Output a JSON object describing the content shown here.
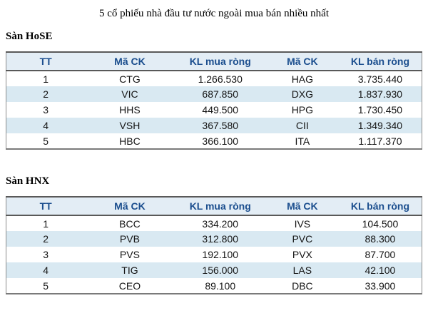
{
  "title": "5 cổ phiếu nhà đầu tư nước ngoài mua bán nhiều nhất",
  "colors": {
    "header_text": "#1b4e8e",
    "header_bg": "#e3edf5",
    "alt_row_bg": "#d9e9f2",
    "border": "#8c8c8c"
  },
  "tables": [
    {
      "section": "Sàn HoSE",
      "headers": [
        "TT",
        "Mã CK",
        "KL mua ròng",
        "Mã CK",
        "KL bán ròng"
      ],
      "rows": [
        [
          "1",
          "CTG",
          "1.266.530",
          "HAG",
          "3.735.440"
        ],
        [
          "2",
          "VIC",
          "687.850",
          "DXG",
          "1.837.930"
        ],
        [
          "3",
          "HHS",
          "449.500",
          "HPG",
          "1.730.450"
        ],
        [
          "4",
          "VSH",
          "367.580",
          "CII",
          "1.349.340"
        ],
        [
          "5",
          "HBC",
          "366.100",
          "ITA",
          "1.117.370"
        ]
      ]
    },
    {
      "section": "Sàn HNX",
      "headers": [
        "TT",
        "Mã CK",
        "KL mua ròng",
        "Mã CK",
        "KL bán ròng"
      ],
      "rows": [
        [
          "1",
          "BCC",
          "334.200",
          "IVS",
          "104.500"
        ],
        [
          "2",
          "PVB",
          "312.800",
          "PVC",
          "88.300"
        ],
        [
          "3",
          "PVS",
          "192.100",
          "PVX",
          "87.700"
        ],
        [
          "4",
          "TIG",
          "156.000",
          "LAS",
          "42.100"
        ],
        [
          "5",
          "CEO",
          "89.100",
          "DBC",
          "33.900"
        ]
      ]
    }
  ]
}
